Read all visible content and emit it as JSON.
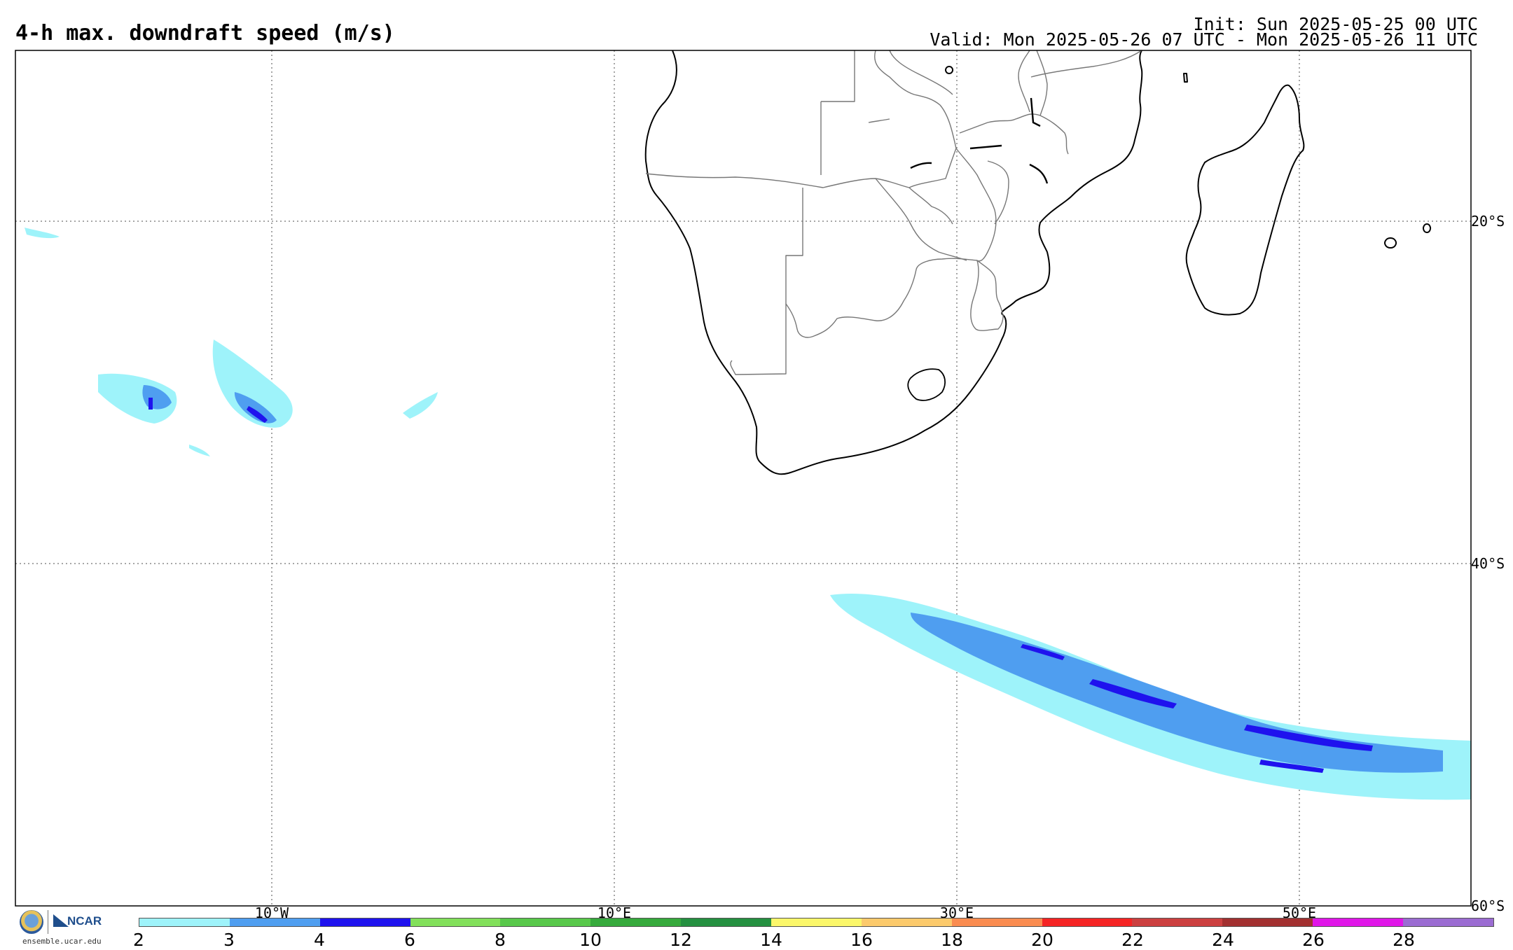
{
  "title": "4-h max. downdraft speed (m/s)",
  "init": "Init: Sun 2025-05-25 00 UTC",
  "valid": "Valid: Mon 2025-05-26 07 UTC - Mon 2025-05-26 11 UTC",
  "logo": {
    "ncar": "NCAR",
    "url": "ensemble.ucar.edu"
  },
  "lon_labels": [
    "10°W",
    "10°E",
    "30°E",
    "50°E"
  ],
  "lat_labels": [
    "20°S",
    "40°S",
    "60°S"
  ],
  "colorbar": {
    "labels": [
      "2",
      "3",
      "4",
      "6",
      "8",
      "10",
      "12",
      "14",
      "16",
      "18",
      "20",
      "22",
      "24",
      "26",
      "28"
    ],
    "colors": [
      "#9ef3fa",
      "#4f9ef0",
      "#1f12ee",
      "#82e05a",
      "#58c84a",
      "#36aa3c",
      "#249040",
      "#fbf76a",
      "#fcca6c",
      "#fa8c50",
      "#f52424",
      "#cc4040",
      "#a23030",
      "#e016e8",
      "#9b6cd2"
    ]
  }
}
